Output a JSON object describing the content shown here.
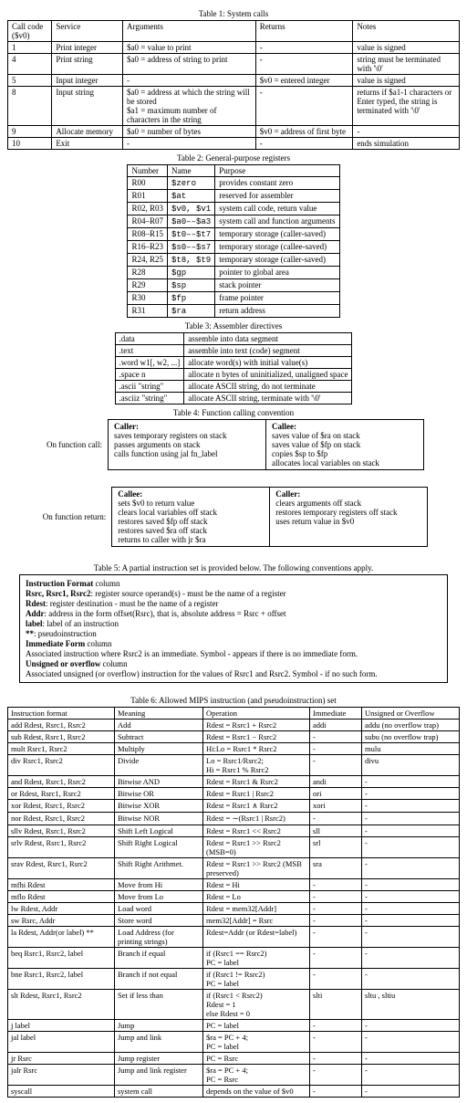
{
  "t1": {
    "caption": "Table 1: System calls",
    "headers": [
      "Call code ($v0)",
      "Service",
      "Arguments",
      "Returns",
      "Notes"
    ],
    "rows": [
      [
        "1",
        "Print integer",
        "$a0 = value to print",
        "-",
        "value is signed"
      ],
      [
        "4",
        "Print string",
        "$a0 = address of string to print",
        "-",
        "string must be terminated with '\\0'"
      ],
      [
        "5",
        "Input integer",
        "-",
        "$v0 = entered integer",
        "value is signed"
      ],
      [
        "8",
        "Input string",
        "$a0 = address at which the string will be stored\n$a1 = maximum number of characters in the string",
        "-",
        "returns if $a1-1 characters or Enter typed, the string is terminated with '\\0'"
      ],
      [
        "9",
        "Allocate memory",
        "$a0 = number of bytes",
        "$v0 = address of first byte",
        "-"
      ],
      [
        "10",
        "Exit",
        "-",
        "-",
        "ends simulation"
      ]
    ],
    "widths": [
      40,
      70,
      140,
      100,
      110
    ]
  },
  "t2": {
    "caption": "Table 2: General-purpose registers",
    "headers": [
      "Number",
      "Name",
      "Purpose"
    ],
    "rows": [
      [
        "R00",
        "$zero",
        "provides constant zero"
      ],
      [
        "R01",
        "$at",
        "reserved for assembler"
      ],
      [
        "R02, R03",
        "$v0, $v1",
        "system call code, return value"
      ],
      [
        "R04–R07",
        "$a0––$a3",
        "system call and function arguments"
      ],
      [
        "R08–R15",
        "$t0––$t7",
        "temporary storage (caller-saved)"
      ],
      [
        "R16–R23",
        "$s0––$s7",
        "temporary storage (callee-saved)"
      ],
      [
        "R24, R25",
        "$t8, $t9",
        "temporary storage (caller-saved)"
      ],
      [
        "R28",
        "$gp",
        "pointer to global area"
      ],
      [
        "R29",
        "$sp",
        "stack pointer"
      ],
      [
        "R30",
        "$fp",
        "frame pointer"
      ],
      [
        "R31",
        "$ra",
        "return address"
      ]
    ]
  },
  "t3": {
    "caption": "Table 3: Assembler directives",
    "rows": [
      [
        ".data",
        "assemble into data segment"
      ],
      [
        ".text",
        "assemble into text (code) segment"
      ],
      [
        ".word w1[, w2, ...]",
        "allocate word(s) with initial value(s)"
      ],
      [
        ".space n",
        "allocate n bytes of uninitialized, unaligned space"
      ],
      [
        ".ascii \"string\"",
        "allocate ASCII string, do not terminate"
      ],
      [
        ".asciiz \"string\"",
        "allocate ASCII string, terminate with '\\0'"
      ]
    ]
  },
  "t4": {
    "caption": "Table 4: Function calling convention",
    "on_call_label": "On function call:",
    "on_return_label": "On function return:",
    "caller_call_title": "Caller:",
    "caller_call": "saves temporary registers on stack\npasses arguments on stack\ncalls function using jal fn_label",
    "callee_call_title": "Callee:",
    "callee_call": "saves value of $ra on stack\nsaves value of $fp on stack\ncopies $sp to $fp\nallocates local variables on stack",
    "callee_ret_title": "Callee:",
    "callee_ret": "sets $v0 to return value\nclears local variables off stack\nrestores saved $fp off stack\nrestores saved $ra off stack\nreturns to caller with jr $ra",
    "caller_ret_title": "Caller:",
    "caller_ret": "clears arguments off stack\nrestores temporary registers off stack\nuses return value in $v0"
  },
  "t5": {
    "caption": "Table 5: A partial instruction set is provided below. The following conventions apply.",
    "lines": [
      {
        "b": "Instruction Format",
        "t": " column"
      },
      {
        "b": "Rsrc, Rsrc1, Rsrc2",
        "t": ": register source operand(s) - must be the name of a register"
      },
      {
        "b": "Rdest",
        "t": ": register destination - must be the name of a register"
      },
      {
        "b": "Addr",
        "t": ": address in the form offset(Rsrc), that is, absolute address = Rsrc + offset"
      },
      {
        "b": "label",
        "t": ": label of an instruction"
      },
      {
        "b": "**",
        "t": ": pseudoinstruction"
      },
      {
        "b": "Immediate Form",
        "t": " column"
      },
      {
        "b": "",
        "t": "Associated instruction where Rsrc2 is an immediate. Symbol - appears if there is no immediate form."
      },
      {
        "b": "Unsigned or overflow",
        "t": " column"
      },
      {
        "b": "",
        "t": "Associated unsigned (or overflow) instruction for the values of Rsrc1 and Rsrc2. Symbol - if no such form."
      }
    ]
  },
  "t6": {
    "caption": "Table 6: Allowed MIPS instruction (and pseudoinstruction) set",
    "headers": [
      "Instruction format",
      "Meaning",
      "Operation",
      "Immediate",
      "Unsigned or Overflow"
    ],
    "groups": [
      [
        [
          "add Rdest, Rsrc1, Rsrc2",
          "Add",
          "Rdest = Rsrc1 + Rsrc2",
          "addi",
          "addu (no overflow trap)"
        ],
        [
          "sub Rdest, Rsrc1, Rsrc2",
          "Subtract",
          "Rdest = Rsrc1 − Rsrc2",
          "-",
          "subu (no overflow trap)"
        ],
        [
          "mult Rsrc1, Rsrc2",
          "Multiply",
          "Hi:Lo = Rsrc1 * Rsrc2",
          "-",
          "mulu"
        ],
        [
          "div Rsrc1, Rsrc2",
          "Divide",
          "Lo = Rsrc1/Rsrc2;\nHi = Rsrc1 % Rsrc2",
          "-",
          "divu"
        ]
      ],
      [
        [
          "and Rdest, Rsrc1, Rsrc2",
          "Bitwise AND",
          "Rdest = Rsrc1 & Rsrc2",
          "andi",
          "-"
        ],
        [
          "or Rdest, Rsrc1, Rsrc2",
          "Bitwise OR",
          "Rdest = Rsrc1 | Rsrc2",
          "ori",
          "-"
        ],
        [
          "xor Rdest, Rsrc1, Rsrc2",
          "Bitwise XOR",
          "Rdest = Rsrc1 ∧ Rsrc2",
          "xori",
          "-"
        ],
        [
          "nor Rdest, Rsrc1, Rsrc2",
          "Bitwise NOR",
          "Rdest = ∼(Rsrc1 | Rsrc2)",
          "-",
          "-"
        ],
        [
          "sllv Rdest, Rsrc1, Rsrc2",
          "Shift Left Logical",
          "Rdest = Rsrc1 << Rsrc2",
          "sll",
          "-"
        ],
        [
          "srlv Rdest, Rsrc1, Rsrc2",
          "Shift Right Logical",
          "Rdest = Rsrc1 >> Rsrc2 (MSB=0)",
          "srl",
          "-"
        ],
        [
          "srav Rdest, Rsrc1, Rsrc2",
          "Shift Right Arithmet.",
          "Rdest = Rsrc1 >> Rsrc2 (MSB preserved)",
          "sra",
          "-"
        ]
      ],
      [
        [
          "mfhi Rdest",
          "Move from Hi",
          "Rdest = Hi",
          "-",
          "-"
        ],
        [
          "mflo Rdest",
          "Move from Lo",
          "Rdest = Lo",
          "-",
          "-"
        ]
      ],
      [
        [
          "lw Rdest, Addr",
          "Load word",
          "Rdest = mem32[Addr]",
          "-",
          "-"
        ],
        [
          "sw Rsrc, Addr",
          "Store word",
          "mem32[Addr] = Rsrc",
          "-",
          "-"
        ],
        [
          "la Rdest, Addr(or label) **",
          "Load Address (for printing strings)",
          "Rdest=Addr (or Rdest=label)",
          "-",
          "-"
        ]
      ],
      [
        [
          "beq Rsrc1, Rsrc2, label",
          "Branch if equal",
          "if (Rsrc1 == Rsrc2)\n  PC = label",
          "-",
          "-"
        ],
        [
          "bne Rsrc1, Rsrc2, label",
          "Branch if not equal",
          "if (Rsrc1 != Rsrc2)\n  PC = label",
          "-",
          "-"
        ],
        [
          "slt Rdest, Rsrc1, Rsrc2",
          "Set if less than",
          "if (Rsrc1 < Rsrc2)\n  Rdest = 1\nelse Rdest = 0",
          "slti",
          "sltu , sltiu"
        ]
      ],
      [
        [
          "j label",
          "Jump",
          "PC = label",
          "-",
          "-"
        ],
        [
          "jal label",
          "Jump and link",
          "$ra = PC + 4;\nPC = label",
          "-",
          "-"
        ],
        [
          "jr Rsrc",
          "Jump register",
          "PC = Rsrc",
          "-",
          "-"
        ],
        [
          "jalr Rsrc",
          "Jump and link register",
          "$ra = PC + 4;\nPC = Rsrc",
          "-",
          "-"
        ]
      ],
      [
        [
          "syscall",
          "system call",
          "depends on the value of $v0",
          "-",
          "-"
        ]
      ]
    ],
    "widths": [
      110,
      90,
      110,
      50,
      100
    ]
  }
}
